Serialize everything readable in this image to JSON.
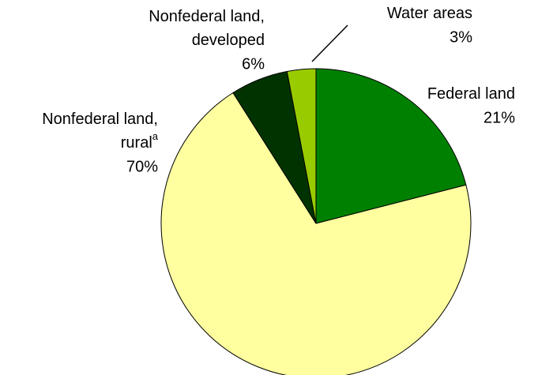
{
  "chart_data": {
    "type": "pie",
    "categories": [
      [
        "Federal land"
      ],
      [
        "Nonfederal land,",
        "rural"
      ],
      [
        "Nonfederal land,",
        "developed"
      ],
      [
        "Water areas"
      ]
    ],
    "footnote_markers": [
      null,
      "a",
      null,
      null
    ],
    "values": [
      21,
      70,
      6,
      3
    ],
    "value_labels": [
      "21%",
      "70%",
      "6%",
      "3%"
    ],
    "colors": [
      "#008000",
      "#ffffa0",
      "#003300",
      "#99cc00"
    ]
  }
}
